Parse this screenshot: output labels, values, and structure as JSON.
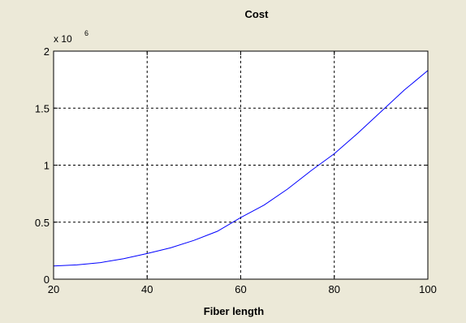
{
  "colors": {
    "figure_bg": "#ece9d8",
    "axes_bg": "#ffffff",
    "line": "#0000ff",
    "grid": "#000000"
  },
  "chart_data": {
    "type": "line",
    "title": "Cost",
    "xlabel": "Fiber length",
    "ylabel": "",
    "xlim": [
      20,
      100
    ],
    "ylim": [
      0,
      2
    ],
    "y_exponent_label": {
      "base": "x 10",
      "power": "6"
    },
    "xticks": [
      20,
      40,
      60,
      80,
      100
    ],
    "xtick_labels": [
      "20",
      "40",
      "60",
      "80",
      "100"
    ],
    "yticks": [
      0,
      0.5,
      1,
      1.5,
      2
    ],
    "ytick_labels": [
      "0",
      "0.5",
      "1",
      "1.5",
      "2"
    ],
    "grid": true,
    "grid_style": "dashed",
    "series": [
      {
        "color": "#0000ff",
        "x": [
          20,
          25,
          30,
          35,
          40,
          45,
          50,
          55,
          60,
          65,
          70,
          75,
          80,
          85,
          90,
          95,
          100
        ],
        "y": [
          0.115,
          0.125,
          0.145,
          0.18,
          0.225,
          0.275,
          0.34,
          0.42,
          0.54,
          0.65,
          0.79,
          0.95,
          1.1,
          1.28,
          1.47,
          1.66,
          1.83
        ]
      }
    ]
  }
}
